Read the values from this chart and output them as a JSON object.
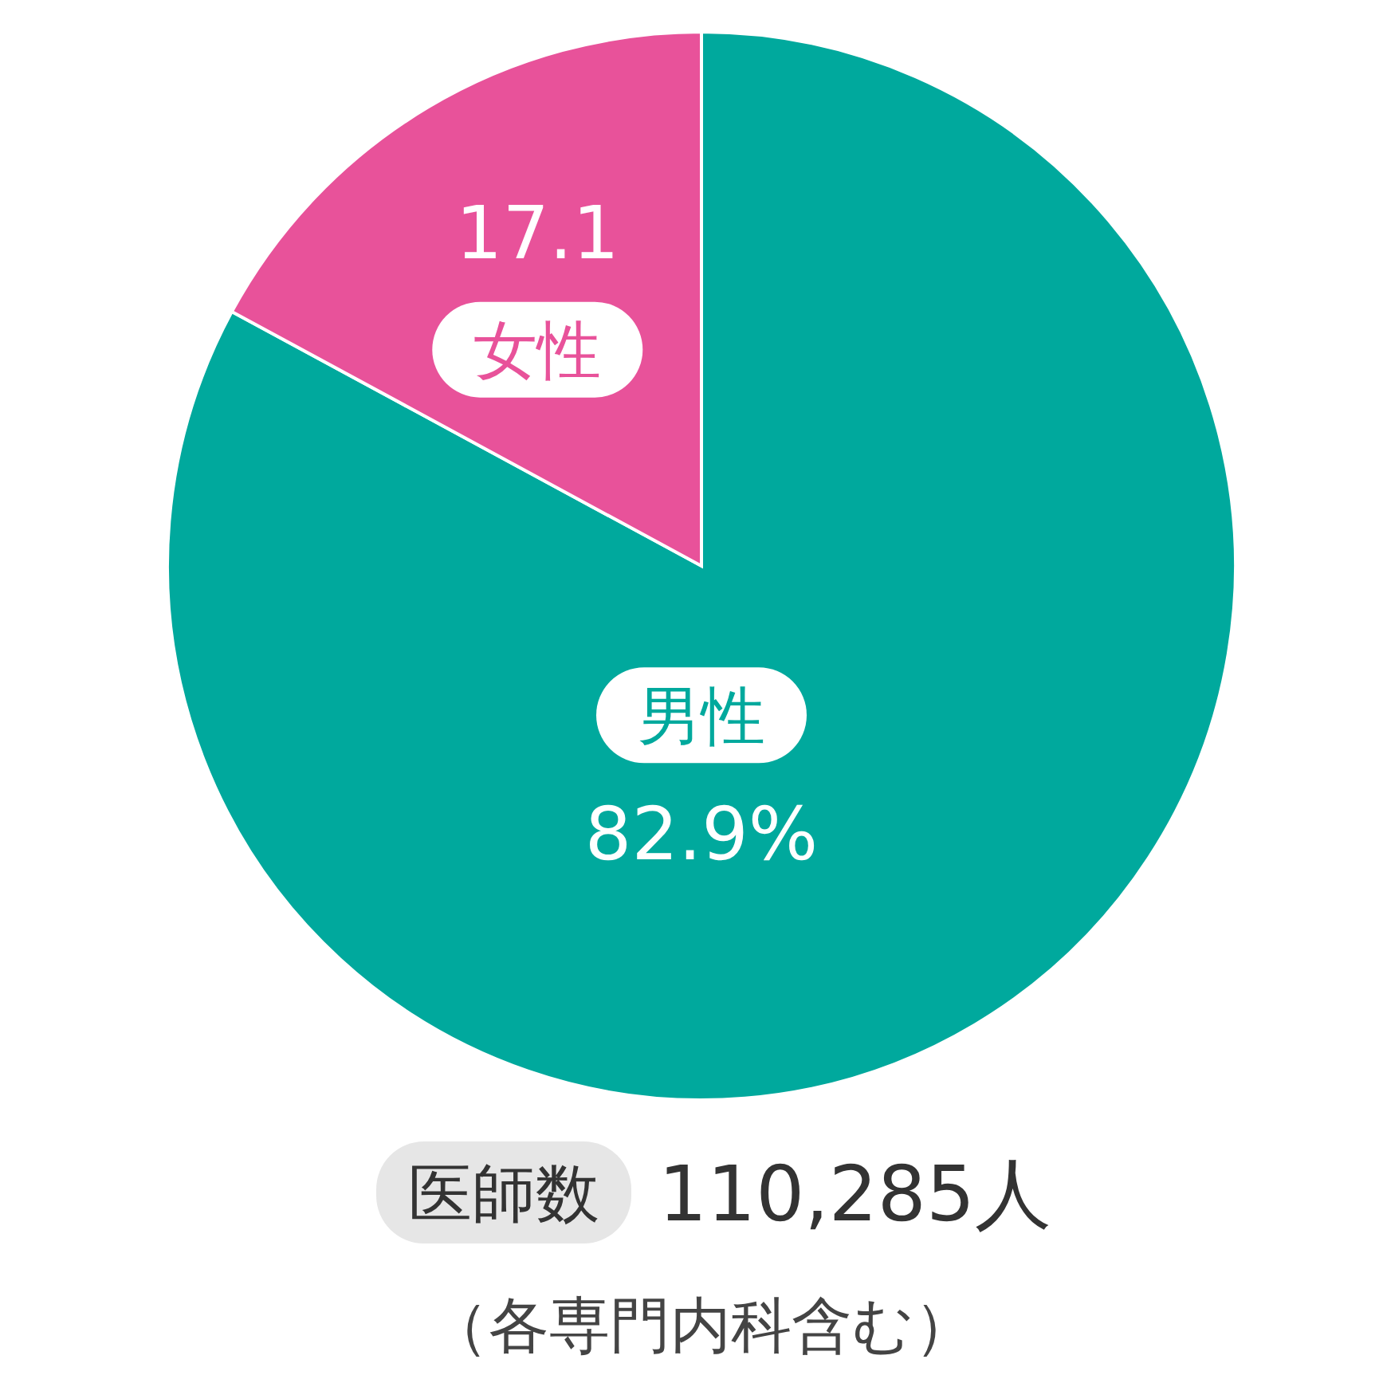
{
  "chart_data": {
    "type": "pie",
    "categories": [
      "男性",
      "女性"
    ],
    "values": [
      82.9,
      17.1
    ],
    "colors": [
      "#00a99d",
      "#e8529a"
    ],
    "value_labels": [
      "82.9%",
      "17.1"
    ],
    "annotations": [
      "医師数",
      "110,285人",
      "（各専門内科含む）"
    ]
  }
}
